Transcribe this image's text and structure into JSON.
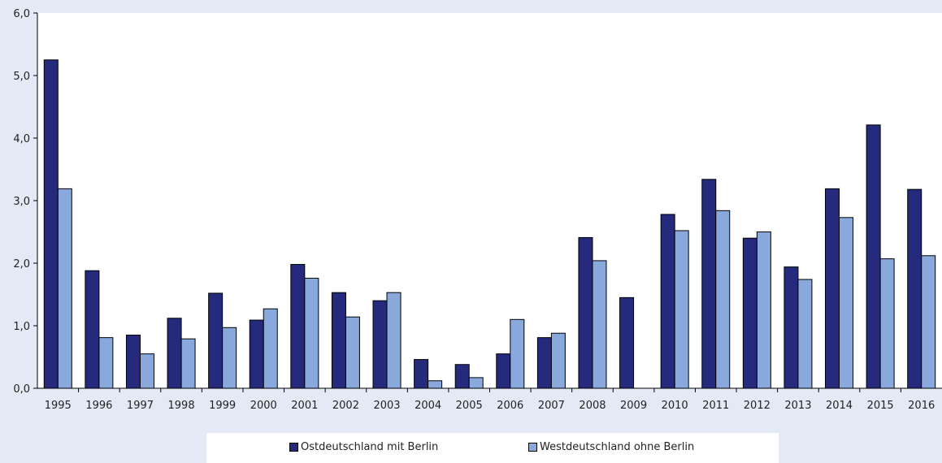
{
  "chart_data": {
    "type": "bar",
    "categories": [
      "1995",
      "1996",
      "1997",
      "1998",
      "1999",
      "2000",
      "2001",
      "2002",
      "2003",
      "2004",
      "2005",
      "2006",
      "2007",
      "2008",
      "2009",
      "2010",
      "2011",
      "2012",
      "2013",
      "2014",
      "2015",
      "2016"
    ],
    "series": [
      {
        "name": "Ostdeutschland mit Berlin",
        "color": "#262a7d",
        "values": [
          5.25,
          1.88,
          0.85,
          1.12,
          1.52,
          1.09,
          1.98,
          1.53,
          1.4,
          0.46,
          0.38,
          0.55,
          0.81,
          2.41,
          1.45,
          2.78,
          3.34,
          2.4,
          1.94,
          3.19,
          4.21,
          3.18
        ]
      },
      {
        "name": "Westdeutschland ohne Berlin",
        "color": "#89a8dc",
        "values": [
          3.19,
          0.81,
          0.55,
          0.79,
          0.97,
          1.27,
          1.76,
          1.14,
          1.53,
          0.12,
          0.17,
          1.1,
          0.88,
          2.04,
          0.0,
          2.52,
          2.84,
          2.5,
          1.74,
          2.73,
          2.07,
          2.12
        ]
      }
    ],
    "yticks": [
      "0,0",
      "1,0",
      "2,0",
      "3,0",
      "4,0",
      "5,0",
      "6,0"
    ],
    "ylim": [
      0,
      6
    ],
    "grid": false,
    "legend_position": "bottom"
  }
}
